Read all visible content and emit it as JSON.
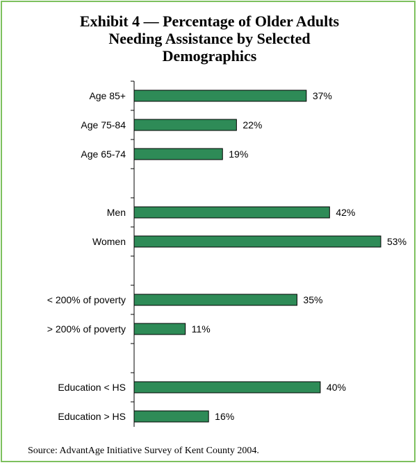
{
  "chart_data": {
    "type": "bar",
    "orientation": "horizontal",
    "title_lines": [
      "Exhibit 4 — Percentage of Older Adults",
      "Needing Assistance by Selected",
      "Demographics"
    ],
    "groups": [
      {
        "categories": [
          "Age 85+",
          "Age 75-84",
          "Age 65-74"
        ],
        "values": [
          37,
          22,
          19
        ]
      },
      {
        "categories": [
          "Men",
          "Women"
        ],
        "values": [
          42,
          53
        ]
      },
      {
        "categories": [
          "< 200% of poverty",
          "> 200% of poverty"
        ],
        "values": [
          35,
          11
        ]
      },
      {
        "categories": [
          "Education < HS",
          "Education > HS"
        ],
        "values": [
          40,
          16
        ]
      }
    ],
    "value_suffix": "%",
    "xlim": [
      0,
      53
    ],
    "bar_color": "#2e8b57",
    "source": "Source:  AdvantAge Initiative Survey of Kent County 2004."
  }
}
